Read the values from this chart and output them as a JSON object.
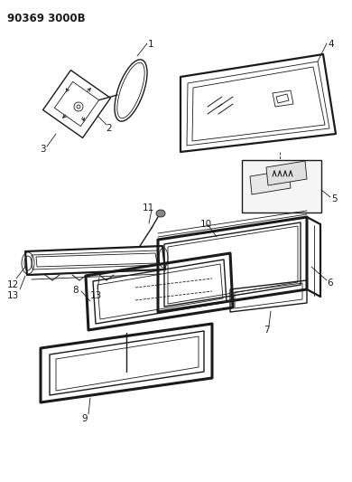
{
  "header": "90369 3000B",
  "bg_color": "#ffffff",
  "line_color": "#1a1a1a",
  "fig_width": 3.9,
  "fig_height": 5.33,
  "dpi": 100,
  "lw_thin": 0.6,
  "lw_med": 1.0,
  "lw_thick": 1.6,
  "lw_frame": 2.2,
  "label_fs": 7.5,
  "header_fs": 8.5
}
